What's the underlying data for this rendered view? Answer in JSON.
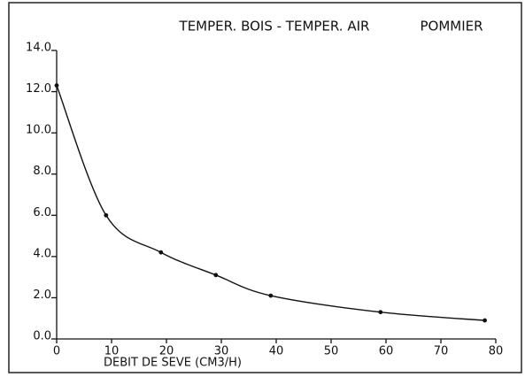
{
  "chart_data": {
    "type": "line",
    "title": "TEMPER. BOIS - TEMPER. AIR",
    "subtitle": "POMMIER",
    "x_label": "DEBIT DE SEVE (CM3/H)",
    "x": [
      0,
      9,
      19,
      29,
      39,
      59,
      78
    ],
    "series": [
      {
        "color": "#111111",
        "values": [
          12.3,
          6.0,
          4.2,
          3.1,
          2.1,
          1.3,
          0.9
        ]
      }
    ],
    "xlim": [
      0,
      80
    ],
    "xticks": [
      0,
      10,
      20,
      30,
      40,
      50,
      60,
      70,
      80
    ],
    "ylim": [
      0,
      14
    ],
    "yticks": [
      {
        "value": 0,
        "label": "0.0"
      },
      {
        "value": 2,
        "label": "2.0"
      },
      {
        "value": 4,
        "label": "4.0"
      },
      {
        "value": 6,
        "label": "6.0"
      },
      {
        "value": 8,
        "label": "8.0"
      },
      {
        "value": 10,
        "label": "10.0"
      },
      {
        "value": 12,
        "label": "12.0"
      },
      {
        "value": 14,
        "label": "14.0"
      }
    ],
    "grid": false
  }
}
